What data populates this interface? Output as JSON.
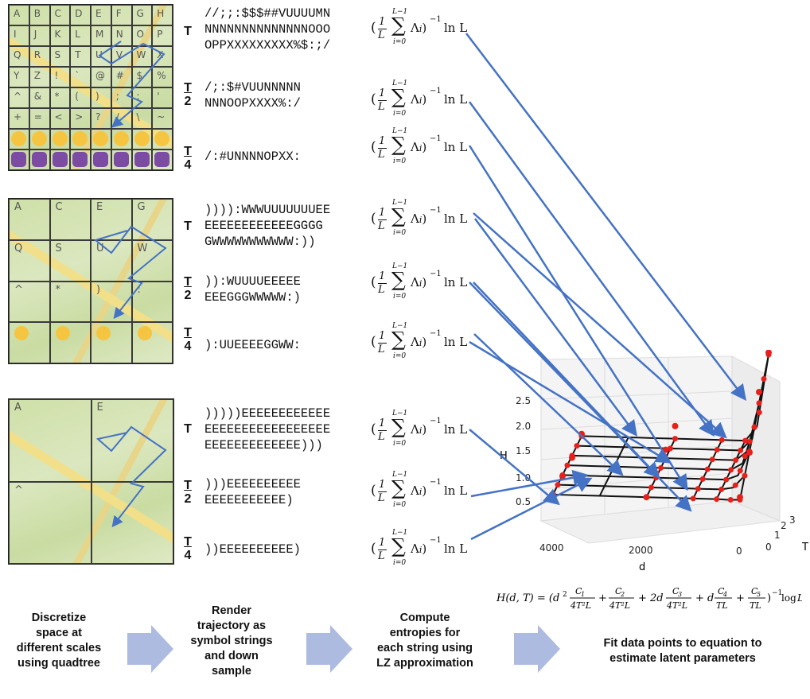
{
  "grid1": {
    "rows": [
      [
        "A",
        "B",
        "C",
        "D",
        "E",
        "F",
        "G",
        "H"
      ],
      [
        "I",
        "J",
        "K",
        "L",
        "M",
        "N",
        "O",
        "P"
      ],
      [
        "Q",
        "R",
        "S",
        "T",
        "U",
        "V",
        "W",
        "X"
      ],
      [
        "Y",
        "Z",
        "!",
        "`",
        "@",
        "#",
        "$",
        "%"
      ],
      [
        "^",
        "&",
        "*",
        "(",
        ")",
        ";",
        ":",
        "'"
      ],
      [
        "+",
        "=",
        "<",
        ">",
        "?",
        "/",
        "\\",
        "~"
      ]
    ]
  },
  "grid2": {
    "rows": [
      [
        "A",
        "C",
        "E",
        "G"
      ],
      [
        "Q",
        "S",
        "U",
        "W"
      ],
      [
        "^",
        "*",
        ")",
        ":"
      ],
      [
        "",
        "",
        "",
        ""
      ]
    ]
  },
  "grid3": {
    "rows": [
      [
        "A",
        "E"
      ],
      [
        "^",
        ""
      ]
    ]
  },
  "t_labels": {
    "t": "T",
    "two": "2",
    "four": "4"
  },
  "strings": {
    "s1_t": "//;;:$$$##VUUUUMN\nNNNNNNNNNNNNNNOOO\nOPPXXXXXXXXX%$:;/",
    "s1_t2": "/;:$#VUUNNNNN\nNNNOOPXXXX%:/",
    "s1_t4": "/:#UNNNNOPXX:",
    "s2_t": ")))):WWWUUUUUUUEE\nEEEEEEEEEEEEGGGG\nGWWWWWWWWWWW:))",
    "s2_t2": ")):WUUUUEEEEE\nEEEGGGWWWWW:)",
    "s2_t4": "):UUEEEEGGWW:",
    "s3_t": ")))))EEEEEEEEEEEE\nEEEEEEEEEEEEEEEEE\nEEEEEEEEEEEEE)))",
    "s3_t2": ")))EEEEEEEEEE\nEEEEEEEEEEE)",
    "s3_t4": "))EEEEEEEEEE)"
  },
  "formula": {
    "open": "(",
    "num": "1",
    "den": "L",
    "sum_top": "L−1",
    "sigma": "∑",
    "sum_bot": "i=0",
    "lambda": "Λ",
    "sub": "i",
    "close": ")",
    "pow": "−1",
    "ln": "ln L"
  },
  "chart_data": {
    "type": "scatter",
    "title": "",
    "xlabel": "d",
    "ylabel": "H",
    "zlabel": "T",
    "x_ticks": [
      "4000",
      "2000",
      "0"
    ],
    "y_ticks": [
      "0.5",
      "1.0",
      "1.5",
      "2.0",
      "2.5"
    ],
    "z_ticks": [
      "0",
      "1",
      "2",
      "3"
    ],
    "series": [
      {
        "values": [
          {
            "d": 4000,
            "T": 0,
            "H": 0.35
          },
          {
            "d": 4000,
            "T": 1,
            "H": 0.55
          },
          {
            "d": 4000,
            "T": 2,
            "H": 0.75
          },
          {
            "d": 4000,
            "T": 3,
            "H": 1.05
          },
          {
            "d": 2000,
            "T": 0,
            "H": 0.3
          },
          {
            "d": 2000,
            "T": 1,
            "H": 0.6
          },
          {
            "d": 2000,
            "T": 2,
            "H": 0.9
          },
          {
            "d": 2000,
            "T": 3,
            "H": 1.2
          },
          {
            "d": 0,
            "T": 0,
            "H": 0.3
          },
          {
            "d": 0,
            "T": 1,
            "H": 1.0
          },
          {
            "d": 0,
            "T": 2,
            "H": 2.0
          },
          {
            "d": 0,
            "T": 3,
            "H": 2.6
          }
        ]
      }
    ],
    "grid": true
  },
  "fit_equation": "H(d, T) = (d² C₁/(4T²L) + C₂/(4T²L) + 2d C₃/(4T²L) + d C₄/(TL) + C₅/(TL))⁻¹ log L",
  "steps": {
    "s1": "Discretize space at different scales using quadtree",
    "s2": "Render trajectory as symbol strings and down sample",
    "s3": "Compute entropies for each string using LZ approximation",
    "s4": "Fit data points to equation to estimate latent parameters"
  },
  "colors": {
    "arrow": "#4472c4",
    "chevron": "#aebbe0",
    "point": "#e8201b"
  }
}
